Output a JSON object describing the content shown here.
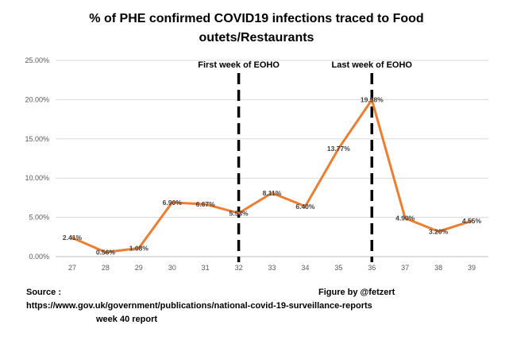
{
  "chart_data": {
    "type": "line",
    "title": "% of PHE confirmed COVID19 infections traced to Food outets/Restaurants",
    "title_lines": [
      "% of PHE confirmed COVID19 infections traced to Food",
      "outets/Restaurants"
    ],
    "x": [
      27,
      28,
      29,
      30,
      31,
      32,
      33,
      34,
      35,
      36,
      37,
      38,
      39
    ],
    "x_tick_labels": [
      "27",
      "28",
      "29",
      "30",
      "31",
      "32",
      "33",
      "34",
      "35",
      "36",
      "37",
      "38",
      "39"
    ],
    "values": [
      2.41,
      0.56,
      1.08,
      6.9,
      6.67,
      5.53,
      8.11,
      6.4,
      13.77,
      19.98,
      4.9,
      3.2,
      4.55
    ],
    "data_labels": [
      "2.41%",
      "0.56%",
      "1.08%",
      "6.90%",
      "6.67%",
      "5.53%",
      "8.11%",
      "6.40%",
      "13.77%",
      "19.98%",
      "4.90%",
      "3.20%",
      "4.55%"
    ],
    "y_ticks": [
      0,
      5,
      10,
      15,
      20,
      25
    ],
    "y_tick_labels": [
      "0.00%",
      "5.00%",
      "10.00%",
      "15.00%",
      "20.00%",
      "25.00%"
    ],
    "ylim": [
      0,
      25
    ],
    "xlabel": "",
    "ylabel": "",
    "grid": true,
    "line_color": "#ED7D31",
    "annotations": [
      {
        "text": "First week of EOHO",
        "x": 32
      },
      {
        "text": "Last week of EOHO",
        "x": 36
      }
    ]
  },
  "footer": {
    "source_label": "Source :",
    "source_url": "https://www.gov.uk/government/publications/national-covid-19-surveillance-reports",
    "report": "week 40 report",
    "credit": "Figure by @fetzert"
  }
}
